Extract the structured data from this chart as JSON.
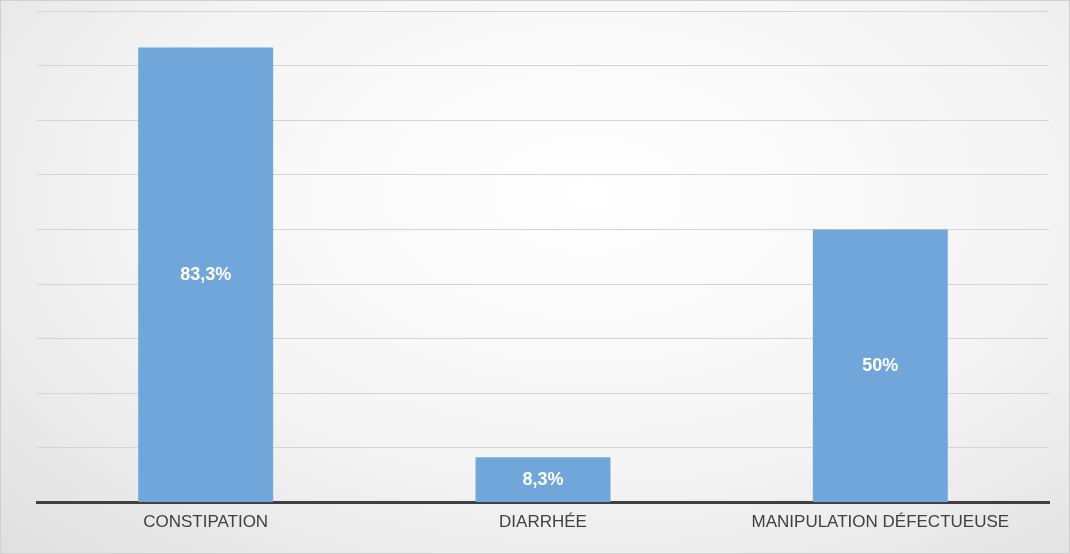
{
  "chart_data": {
    "type": "bar",
    "categories": [
      "CONSTIPATION",
      "DIARRHÉE",
      "MANIPULATION DÉFECTUEUSE"
    ],
    "values": [
      83.3,
      8.3,
      50
    ],
    "value_labels": [
      "83,3%",
      "8,3%",
      "50%"
    ],
    "color": "#70a6da",
    "ylim": [
      0,
      90
    ],
    "yticks": [
      {
        "value": 0,
        "label": null
      },
      {
        "value": 10,
        "label": null
      },
      {
        "value": 20,
        "label": null
      },
      {
        "value": 30,
        "label": null
      },
      {
        "value": 40,
        "label": null
      },
      {
        "value": 50,
        "label": null
      },
      {
        "value": 60,
        "label": null
      },
      {
        "value": 70,
        "label": null
      },
      {
        "value": 80,
        "label": null
      },
      {
        "value": 90,
        "label": null
      }
    ],
    "grid": "y",
    "tick_labels": "x"
  }
}
